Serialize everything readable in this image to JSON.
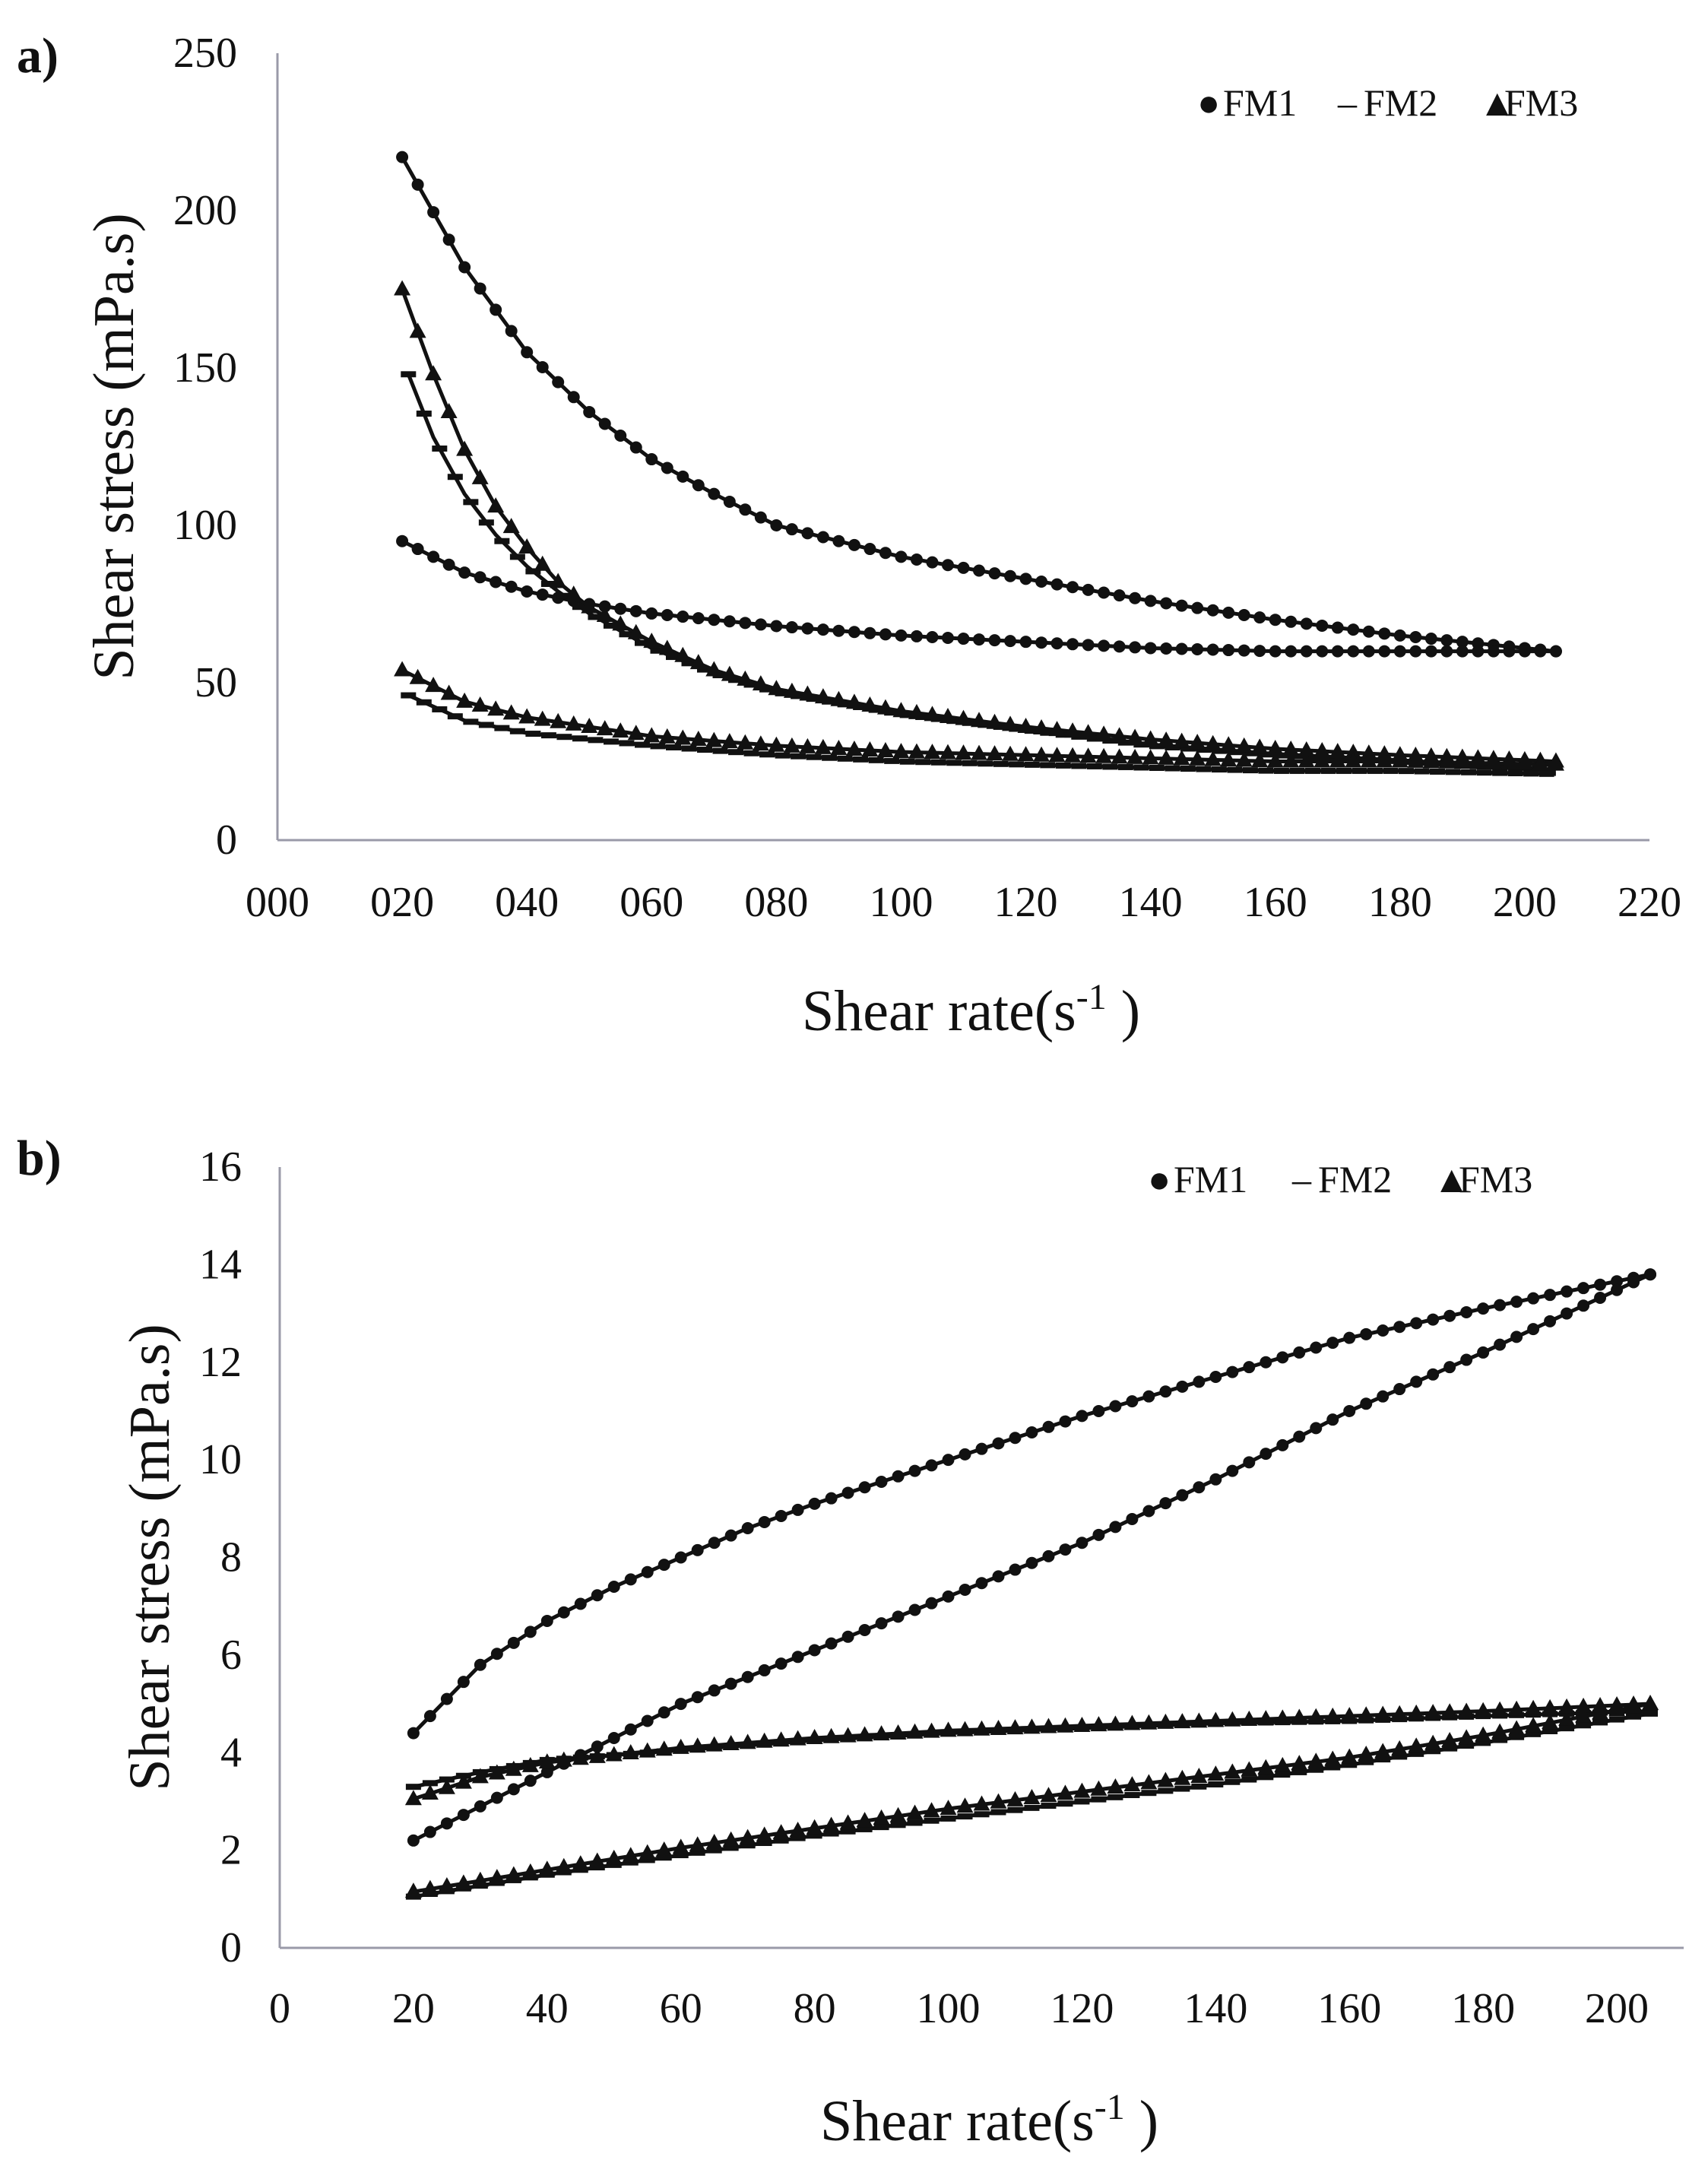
{
  "chart_data": [
    {
      "panel": "a)",
      "type": "scatter",
      "title": "",
      "xlabel": "Shear rate(s",
      "xlabel_sup": "-1",
      "xlabel_end": " )",
      "ylabel": "Shear stress (mPa.s)",
      "xlim": [
        0,
        220
      ],
      "ylim": [
        0,
        250
      ],
      "xticks": [
        "000",
        "020",
        "040",
        "060",
        "080",
        "100",
        "120",
        "140",
        "160",
        "180",
        "200",
        "220"
      ],
      "yticks": [
        "0",
        "50",
        "100",
        "150",
        "200",
        "250"
      ],
      "legend_position": "top-right",
      "legend": [
        {
          "marker": "●",
          "label": "FM1"
        },
        {
          "marker": "–",
          "label": "FM2"
        },
        {
          "marker": "▲",
          "label": "FM3"
        }
      ],
      "series": [
        {
          "name": "FM1 up",
          "marker": "circle",
          "x_start": 20,
          "x_end": 205,
          "x": [
            20,
            30,
            40,
            50,
            60,
            70,
            80,
            100,
            120,
            140,
            160,
            180,
            205
          ],
          "y": [
            217,
            182,
            155,
            136,
            121,
            110,
            100,
            90,
            83,
            76,
            70,
            65,
            60
          ]
        },
        {
          "name": "FM1 down",
          "marker": "circle",
          "x_start": 20,
          "x_end": 205,
          "x": [
            20,
            30,
            40,
            50,
            60,
            80,
            100,
            120,
            140,
            160,
            180,
            205
          ],
          "y": [
            95,
            85,
            79,
            75,
            72,
            68,
            65,
            63,
            61,
            60,
            60,
            60
          ]
        },
        {
          "name": "FM2 up",
          "marker": "dash",
          "x_start": 21,
          "x_end": 205,
          "x": [
            21,
            25,
            30,
            35,
            40,
            45,
            50,
            60,
            70,
            80,
            100,
            120,
            140,
            160,
            180,
            205
          ],
          "y": [
            148,
            128,
            110,
            97,
            87,
            79,
            72,
            61,
            53,
            47,
            40,
            35,
            30,
            27,
            25,
            22
          ]
        },
        {
          "name": "FM2 down",
          "marker": "dash",
          "x_start": 21,
          "x_end": 205,
          "x": [
            21,
            30,
            40,
            50,
            60,
            80,
            100,
            120,
            140,
            160,
            180,
            205
          ],
          "y": [
            46,
            38,
            34,
            32,
            30,
            27,
            25,
            24,
            23,
            22,
            22,
            21
          ]
        },
        {
          "name": "FM3 up",
          "marker": "triangle",
          "x_start": 20,
          "x_end": 205,
          "x": [
            20,
            25,
            30,
            35,
            40,
            45,
            50,
            60,
            70,
            80,
            100,
            120,
            140,
            160,
            180,
            205
          ],
          "y": [
            175,
            148,
            124,
            106,
            93,
            82,
            74,
            63,
            54,
            48,
            41,
            36,
            32,
            29,
            27,
            25
          ]
        },
        {
          "name": "FM3 down",
          "marker": "triangle",
          "x_start": 20,
          "x_end": 205,
          "x": [
            20,
            30,
            40,
            50,
            60,
            80,
            100,
            120,
            140,
            160,
            180,
            205
          ],
          "y": [
            54,
            44,
            39,
            36,
            33,
            30,
            28,
            27,
            26,
            25,
            25,
            24
          ]
        }
      ]
    },
    {
      "panel": "b)",
      "type": "scatter",
      "title": "",
      "xlabel": "Shear rate(s",
      "xlabel_sup": "-1",
      "xlabel_end": " )",
      "ylabel": "Shear stress (mPa.s)",
      "xlim": [
        0,
        210
      ],
      "ylim": [
        0,
        16
      ],
      "xticks": [
        "0",
        "20",
        "40",
        "60",
        "80",
        "100",
        "120",
        "140",
        "160",
        "180",
        "200"
      ],
      "yticks": [
        "0",
        "2",
        "4",
        "6",
        "8",
        "10",
        "12",
        "14",
        "16"
      ],
      "legend_position": "top-right",
      "legend": [
        {
          "marker": "●",
          "label": "FM1"
        },
        {
          "marker": "–",
          "label": "FM2"
        },
        {
          "marker": "▲",
          "label": "FM3"
        }
      ],
      "series": [
        {
          "name": "FM1 down",
          "marker": "circle",
          "x_start": 20,
          "x_end": 205,
          "x": [
            20,
            30,
            40,
            50,
            60,
            70,
            80,
            100,
            120,
            140,
            160,
            180,
            205
          ],
          "y": [
            4.4,
            5.8,
            6.7,
            7.4,
            8.0,
            8.6,
            9.1,
            10.0,
            10.9,
            11.7,
            12.5,
            13.1,
            13.8
          ]
        },
        {
          "name": "FM1 up",
          "marker": "circle",
          "x_start": 20,
          "x_end": 205,
          "x": [
            20,
            40,
            60,
            80,
            100,
            120,
            140,
            160,
            180,
            205
          ],
          "y": [
            2.2,
            3.6,
            5.0,
            6.1,
            7.2,
            8.3,
            9.6,
            11.0,
            12.2,
            13.8
          ]
        },
        {
          "name": "FM2 down",
          "marker": "dash",
          "x_start": 20,
          "x_end": 205,
          "x": [
            20,
            30,
            40,
            60,
            80,
            100,
            120,
            140,
            160,
            180,
            205
          ],
          "y": [
            3.3,
            3.6,
            3.85,
            4.05,
            4.25,
            4.4,
            4.5,
            4.6,
            4.65,
            4.75,
            4.85
          ]
        },
        {
          "name": "FM2 up",
          "marker": "dash",
          "x_start": 20,
          "x_end": 205,
          "x": [
            20,
            40,
            60,
            80,
            100,
            120,
            140,
            160,
            180,
            205
          ],
          "y": [
            1.05,
            1.5,
            1.9,
            2.3,
            2.65,
            3.0,
            3.35,
            3.75,
            4.2,
            4.8
          ]
        },
        {
          "name": "FM3 down",
          "marker": "triangle",
          "x_start": 20,
          "x_end": 205,
          "x": [
            20,
            30,
            40,
            60,
            80,
            100,
            120,
            140,
            160,
            180,
            205
          ],
          "y": [
            3.05,
            3.5,
            3.8,
            4.1,
            4.3,
            4.45,
            4.55,
            4.65,
            4.75,
            4.85,
            5.0
          ]
        },
        {
          "name": "FM3 up",
          "marker": "triangle",
          "x_start": 20,
          "x_end": 205,
          "x": [
            20,
            40,
            60,
            80,
            100,
            120,
            140,
            160,
            180,
            205
          ],
          "y": [
            1.15,
            1.6,
            2.05,
            2.45,
            2.85,
            3.2,
            3.55,
            3.9,
            4.35,
            5.0
          ]
        }
      ]
    }
  ]
}
